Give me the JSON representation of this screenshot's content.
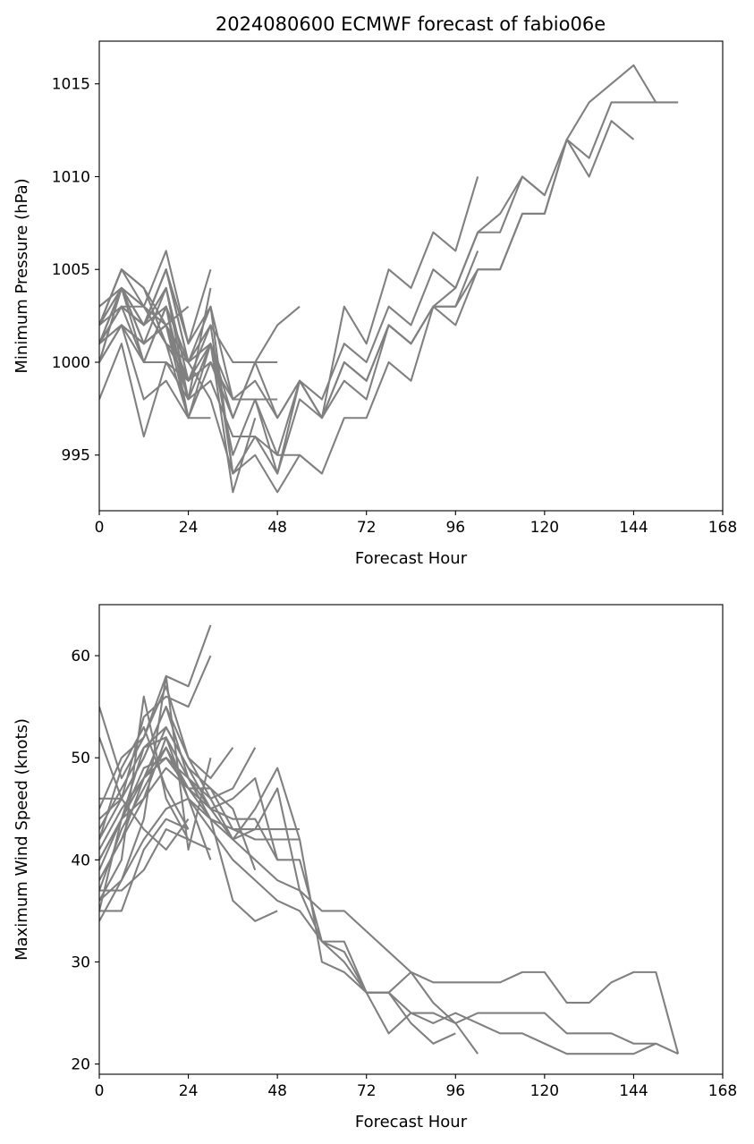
{
  "figure": {
    "title": "2024080600 ECMWF forecast of fabio06e",
    "line_color": "#808080"
  },
  "chart_data": [
    {
      "type": "line",
      "xlabel": "Forecast Hour",
      "ylabel": "Minimum Pressure (hPa)",
      "xlim": [
        0,
        168
      ],
      "ylim": [
        992,
        1017.3
      ],
      "xticks": [
        0,
        24,
        48,
        72,
        96,
        120,
        144,
        168
      ],
      "yticks": [
        995,
        1000,
        1005,
        1010,
        1015
      ],
      "grid": false,
      "series": [
        {
          "x": [
            0,
            6,
            12,
            18,
            24,
            30,
            36,
            42,
            48,
            54,
            60,
            66,
            72,
            78,
            84,
            90,
            96,
            102,
            108,
            114,
            120,
            126,
            132,
            138,
            144,
            150,
            156
          ],
          "y": [
            1002,
            1005,
            1004,
            1001,
            1000,
            998,
            994,
            995,
            993,
            995,
            994,
            997,
            997,
            1000,
            999,
            1003,
            1003,
            1005,
            1005,
            1008,
            1008,
            1012,
            1014,
            1015,
            1016,
            1014,
            1014
          ]
        },
        {
          "x": [
            0,
            6,
            12,
            18,
            24,
            30,
            36,
            42,
            48,
            54,
            60,
            66,
            72,
            78,
            84,
            90,
            96,
            102,
            108,
            114,
            120,
            126,
            132,
            138,
            144,
            150
          ],
          "y": [
            1001,
            1003,
            1002,
            1003,
            1000,
            1001,
            998,
            999,
            997,
            999,
            997,
            999,
            998,
            1002,
            1001,
            1003,
            1004,
            1007,
            1008,
            1010,
            1009,
            1012,
            1011,
            1014,
            1014,
            1014
          ]
        },
        {
          "x": [
            0,
            6,
            12,
            18,
            24,
            30,
            36,
            42,
            48,
            54,
            60,
            66,
            72,
            78,
            84,
            90,
            96,
            102,
            108,
            114,
            120,
            126,
            132,
            138,
            144
          ],
          "y": [
            1001,
            1002,
            1001,
            1004,
            998,
            1001,
            995,
            998,
            994,
            998,
            997,
            1000,
            999,
            1002,
            1001,
            1003,
            1002,
            1005,
            1005,
            1008,
            1008,
            1012,
            1010,
            1013,
            1012
          ]
        },
        {
          "x": [
            0,
            6,
            12,
            18,
            24,
            30,
            36,
            42,
            48,
            54,
            60,
            66,
            72,
            78,
            84,
            90,
            96,
            102,
            108,
            114,
            120
          ],
          "y": [
            1000,
            1004,
            1003,
            1001,
            999,
            1000,
            997,
            1000,
            997,
            999,
            998,
            1001,
            1000,
            1003,
            1002,
            1005,
            1004,
            1007,
            1007,
            1010,
            1009
          ]
        },
        {
          "x": [
            0,
            6,
            12,
            18,
            24,
            30,
            36,
            42,
            48,
            54,
            60,
            66,
            72,
            78,
            84,
            90,
            96,
            102
          ],
          "y": [
            1002,
            1004,
            1002,
            1005,
            1001,
            1003,
            998,
            998,
            995,
            999,
            997,
            1003,
            1001,
            1005,
            1004,
            1007,
            1006,
            1010
          ]
        },
        {
          "x": [
            0,
            6,
            12,
            18,
            24,
            30,
            36,
            42,
            48,
            54,
            60,
            66,
            72,
            78,
            84,
            90,
            96,
            102
          ],
          "y": [
            1001,
            1003,
            1002,
            1004,
            999,
            1002,
            994,
            996,
            994,
            999,
            997,
            1000,
            999,
            1002,
            1001,
            1003,
            1003,
            1006
          ]
        },
        {
          "x": [
            0,
            6,
            12,
            18,
            24,
            30,
            36,
            42,
            48,
            54,
            60
          ],
          "y": [
            1000,
            1004,
            1000,
            1003,
            998,
            999,
            996,
            996,
            995,
            995,
            994
          ]
        },
        {
          "x": [
            0,
            6,
            12,
            18,
            24,
            30,
            36,
            42,
            48,
            54
          ],
          "y": [
            1003,
            1004,
            1001,
            1002,
            999,
            1001,
            997,
            1000,
            1002,
            1003
          ]
        },
        {
          "x": [
            0,
            6,
            12,
            18,
            24,
            30,
            36,
            42,
            48
          ],
          "y": [
            1002,
            1005,
            1004,
            1002,
            1000,
            1002,
            1000,
            1000,
            1000
          ]
        },
        {
          "x": [
            0,
            6,
            12,
            18,
            24,
            30,
            36,
            42,
            48
          ],
          "y": [
            1001,
            1002,
            1000,
            1003,
            997,
            1000,
            998,
            998,
            998
          ]
        },
        {
          "x": [
            0,
            6,
            12,
            18,
            24,
            30,
            36,
            42
          ],
          "y": [
            1002,
            1003,
            1003,
            1001,
            997,
            1001,
            993,
            997
          ]
        },
        {
          "x": [
            0,
            6,
            12,
            18,
            24,
            30,
            36
          ],
          "y": [
            1001,
            1004,
            1002,
            1005,
            1000,
            1003,
            994
          ]
        },
        {
          "x": [
            0,
            6,
            12,
            18,
            24,
            30
          ],
          "y": [
            1000,
            1002,
            1001,
            1002,
            998,
            1004
          ]
        },
        {
          "x": [
            0,
            6,
            12,
            18,
            24,
            30
          ],
          "y": [
            1002,
            1005,
            1003,
            1006,
            1001,
            1005
          ]
        },
        {
          "x": [
            0,
            6,
            12,
            18,
            24,
            30
          ],
          "y": [
            1001,
            1004,
            1001,
            1002,
            997,
            997
          ]
        },
        {
          "x": [
            0,
            6,
            12,
            18,
            24
          ],
          "y": [
            998,
            1001,
            996,
            1000,
            998
          ]
        },
        {
          "x": [
            0,
            6,
            12,
            18,
            24
          ],
          "y": [
            1001,
            1003,
            1000,
            1000,
            999
          ]
        },
        {
          "x": [
            0,
            6,
            12,
            18,
            24
          ],
          "y": [
            1000,
            1002,
            998,
            999,
            997
          ]
        },
        {
          "x": [
            0,
            6,
            12,
            18,
            24
          ],
          "y": [
            1002,
            1004,
            1003,
            1002,
            1003
          ]
        },
        {
          "x": [
            0,
            6,
            12,
            18,
            24
          ],
          "y": [
            1001,
            1003,
            1002,
            1004,
            999
          ]
        },
        {
          "x": [
            0,
            6,
            12,
            18,
            24
          ],
          "y": [
            1003,
            1004,
            1002,
            1005,
            1000
          ]
        }
      ]
    },
    {
      "type": "line",
      "xlabel": "Forecast Hour",
      "ylabel": "Maximum Wind Speed (knots)",
      "xlim": [
        0,
        168
      ],
      "ylim": [
        19,
        65
      ],
      "xticks": [
        0,
        24,
        48,
        72,
        96,
        120,
        144,
        168
      ],
      "yticks": [
        20,
        30,
        40,
        50,
        60
      ],
      "grid": false,
      "series": [
        {
          "x": [
            0,
            6,
            12,
            18,
            24,
            30,
            36,
            42,
            48,
            54,
            60,
            66,
            72,
            78,
            84,
            90,
            96,
            102,
            108,
            114,
            120,
            126,
            132,
            138,
            144,
            150,
            156
          ],
          "y": [
            36,
            38,
            42,
            45,
            46,
            43,
            40,
            38,
            36,
            35,
            32,
            32,
            27,
            27,
            25,
            25,
            24,
            25,
            25,
            25,
            25,
            23,
            23,
            23,
            22,
            22,
            21
          ]
        },
        {
          "x": [
            0,
            6,
            12,
            18,
            24,
            30,
            36,
            42,
            48,
            54,
            60,
            66,
            72,
            78,
            84,
            90,
            96,
            102,
            108,
            114,
            120,
            126,
            132,
            138,
            144,
            150,
            156
          ],
          "y": [
            38,
            42,
            46,
            52,
            48,
            44,
            42,
            40,
            38,
            37,
            35,
            35,
            33,
            31,
            29,
            28,
            28,
            28,
            28,
            29,
            29,
            26,
            26,
            28,
            29,
            29,
            21
          ]
        },
        {
          "x": [
            0,
            6,
            12,
            18,
            24,
            30,
            36,
            42,
            48,
            54,
            60,
            66,
            72,
            78,
            84,
            90,
            96,
            102,
            108,
            114,
            120,
            126,
            132,
            138,
            144,
            150
          ],
          "y": [
            40,
            44,
            48,
            50,
            47,
            45,
            44,
            44,
            40,
            40,
            32,
            31,
            27,
            23,
            25,
            24,
            25,
            24,
            23,
            23,
            22,
            21,
            21,
            21,
            21,
            22
          ]
        },
        {
          "x": [
            0,
            6,
            12,
            18,
            24,
            30,
            36,
            42,
            48,
            54,
            60,
            66,
            72,
            78,
            84,
            90,
            96,
            102
          ],
          "y": [
            42,
            46,
            50,
            55,
            50,
            46,
            42,
            45,
            49,
            42,
            30,
            29,
            27,
            27,
            29,
            26,
            24,
            21
          ]
        },
        {
          "x": [
            0,
            6,
            12,
            18,
            24,
            30,
            36,
            42,
            48,
            54,
            60,
            66,
            72,
            78,
            84,
            90,
            96
          ],
          "y": [
            41,
            45,
            48,
            53,
            49,
            47,
            43,
            43,
            47,
            37,
            32,
            30,
            27,
            27,
            24,
            22,
            23
          ]
        },
        {
          "x": [
            0,
            6,
            12,
            18,
            24,
            30,
            36,
            42,
            48,
            54
          ],
          "y": [
            37,
            43,
            47,
            51,
            46,
            44,
            43,
            42,
            42,
            42
          ]
        },
        {
          "x": [
            0,
            6,
            12,
            18,
            24,
            30,
            36,
            42,
            48,
            54
          ],
          "y": [
            39,
            44,
            49,
            50,
            48,
            45,
            42,
            43,
            43,
            43
          ]
        },
        {
          "x": [
            0,
            6,
            12,
            18,
            24,
            30,
            36,
            42,
            48
          ],
          "y": [
            43,
            47,
            51,
            53,
            49,
            45,
            46,
            48,
            40
          ]
        },
        {
          "x": [
            0,
            6,
            12,
            18,
            24,
            30,
            36,
            42,
            48
          ],
          "y": [
            40,
            44,
            46,
            49,
            47,
            44,
            36,
            34,
            35
          ]
        },
        {
          "x": [
            0,
            6,
            12,
            18,
            24,
            30,
            36,
            42
          ],
          "y": [
            44,
            46,
            50,
            55,
            48,
            46,
            47,
            51
          ]
        },
        {
          "x": [
            0,
            6,
            12,
            18,
            24,
            30,
            36,
            42
          ],
          "y": [
            38,
            42,
            48,
            51,
            47,
            47,
            45,
            39
          ]
        },
        {
          "x": [
            0,
            6,
            12,
            18,
            24,
            30,
            36
          ],
          "y": [
            45,
            50,
            52,
            57,
            50,
            48,
            51
          ]
        },
        {
          "x": [
            0,
            6,
            12,
            18,
            24,
            30
          ],
          "y": [
            55,
            48,
            52,
            58,
            57,
            63
          ]
        },
        {
          "x": [
            0,
            6,
            12,
            18,
            24,
            30
          ],
          "y": [
            52,
            46,
            54,
            56,
            55,
            60
          ]
        },
        {
          "x": [
            0,
            6,
            12,
            18,
            24,
            30
          ],
          "y": [
            35,
            44,
            51,
            52,
            46,
            40
          ]
        },
        {
          "x": [
            0,
            6,
            12,
            18,
            24,
            30
          ],
          "y": [
            36,
            40,
            56,
            46,
            42,
            41
          ]
        },
        {
          "x": [
            0,
            6,
            12,
            18,
            24,
            30
          ],
          "y": [
            34,
            38,
            44,
            58,
            41,
            50
          ]
        },
        {
          "x": [
            0,
            6,
            12,
            18,
            24
          ],
          "y": [
            46,
            46,
            43,
            41,
            44
          ]
        },
        {
          "x": [
            0,
            6,
            12,
            18,
            24
          ],
          "y": [
            35,
            35,
            41,
            44,
            43
          ]
        },
        {
          "x": [
            0,
            6,
            12,
            18,
            24
          ],
          "y": [
            37,
            37,
            39,
            43,
            42
          ]
        },
        {
          "x": [
            0,
            6,
            12,
            18,
            24
          ],
          "y": [
            42,
            49,
            53,
            47,
            43
          ]
        }
      ]
    }
  ]
}
